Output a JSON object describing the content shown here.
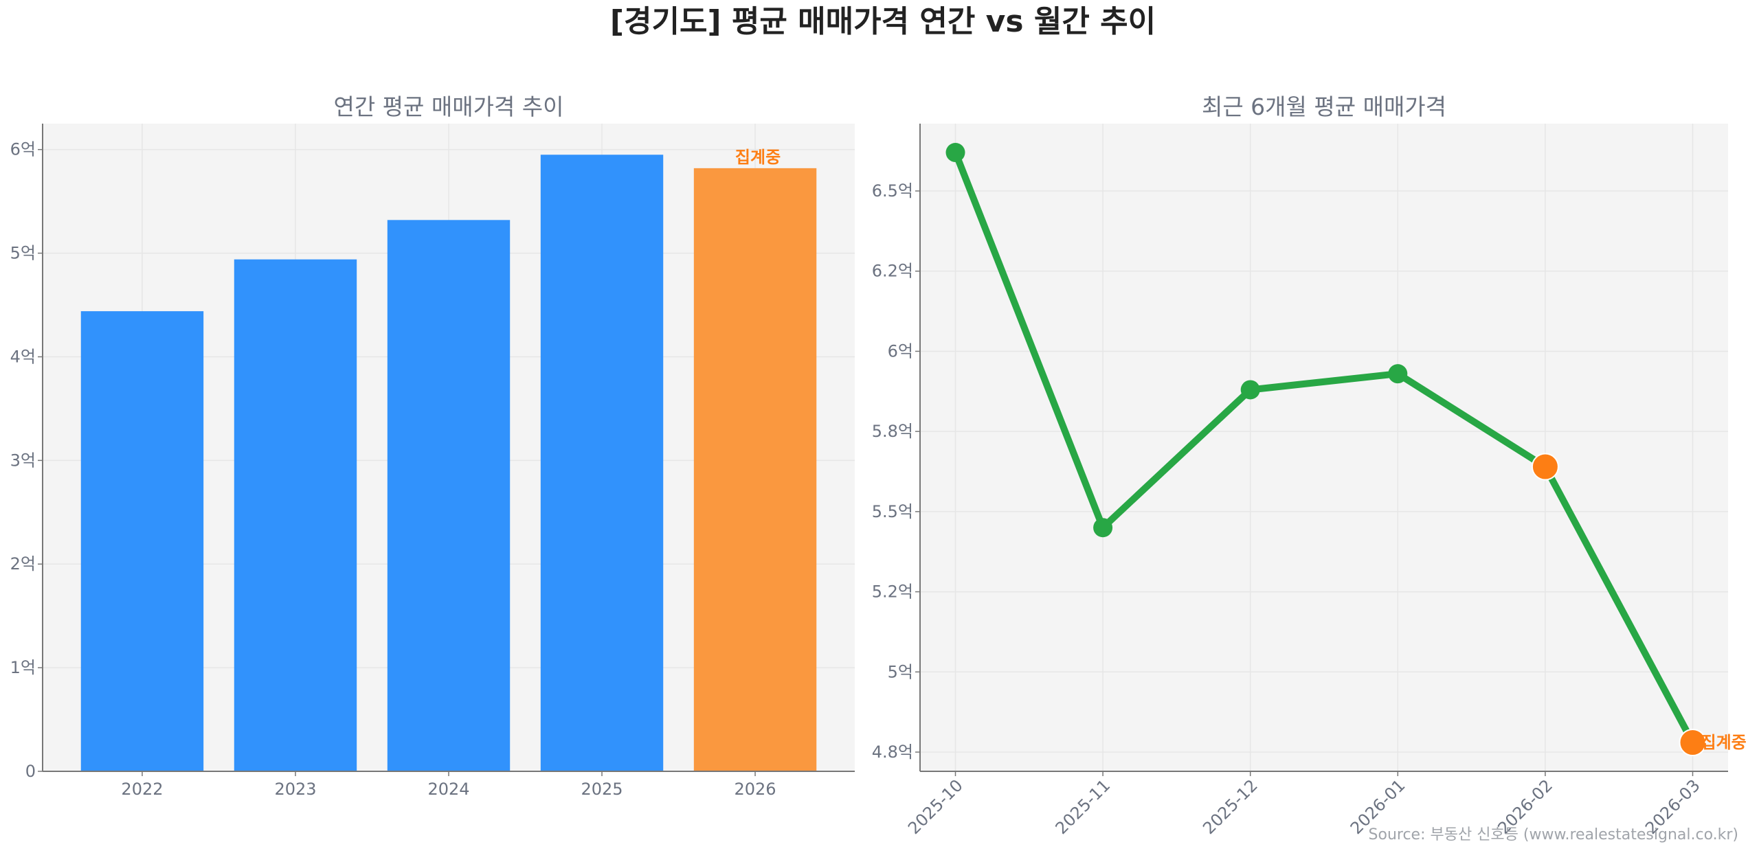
{
  "title": "[경기도] 평균 매매가격 연간 vs 월간 추이",
  "source": "Source: 부동산 신호등 (www.realestatesignal.co.kr)",
  "colors": {
    "bar": "#3192fc",
    "bar_partial": "#fa983f",
    "line": "#28a745",
    "partial_marker": "#fd7e14",
    "annotation": "#fd7e14",
    "plot_bg": "#f4f4f4",
    "grid": "#e6e6e6"
  },
  "chart_data": [
    {
      "type": "bar",
      "title": "연간 평균 매매가격 추이",
      "categories": [
        "2022",
        "2023",
        "2024",
        "2025",
        "2026"
      ],
      "values": [
        4.44,
        4.94,
        5.32,
        5.95,
        5.82
      ],
      "unit": "억",
      "partial": [
        false,
        false,
        false,
        false,
        true
      ],
      "annotation": {
        "category": "2026",
        "text": "집계중"
      },
      "yticks": [
        0,
        1,
        2,
        3,
        4,
        5,
        6
      ],
      "ytick_labels": [
        "0",
        "1억",
        "2억",
        "3억",
        "4억",
        "5억",
        "6억"
      ],
      "ylim": [
        0,
        6.25
      ],
      "grid": true
    },
    {
      "type": "line",
      "title": "최근 6개월 평균 매매가격",
      "categories": [
        "2025-10",
        "2025-11",
        "2025-12",
        "2026-01",
        "2026-02",
        "2026-03"
      ],
      "values": [
        6.62,
        5.45,
        5.88,
        5.93,
        5.64,
        4.78
      ],
      "unit": "억",
      "partial": [
        false,
        false,
        false,
        false,
        true,
        true
      ],
      "annotation": {
        "category": "2026-03",
        "text": "집계중"
      },
      "yticks": [
        4.75,
        5.0,
        5.25,
        5.5,
        5.75,
        6.0,
        6.25,
        6.5
      ],
      "ytick_labels": [
        "4.8억",
        "5억",
        "5.2억",
        "5.5억",
        "5.8억",
        "6억",
        "6.2억",
        "6.5억"
      ],
      "ylim": [
        4.69,
        6.71
      ],
      "xtick_rotation": 45,
      "grid": true
    }
  ]
}
